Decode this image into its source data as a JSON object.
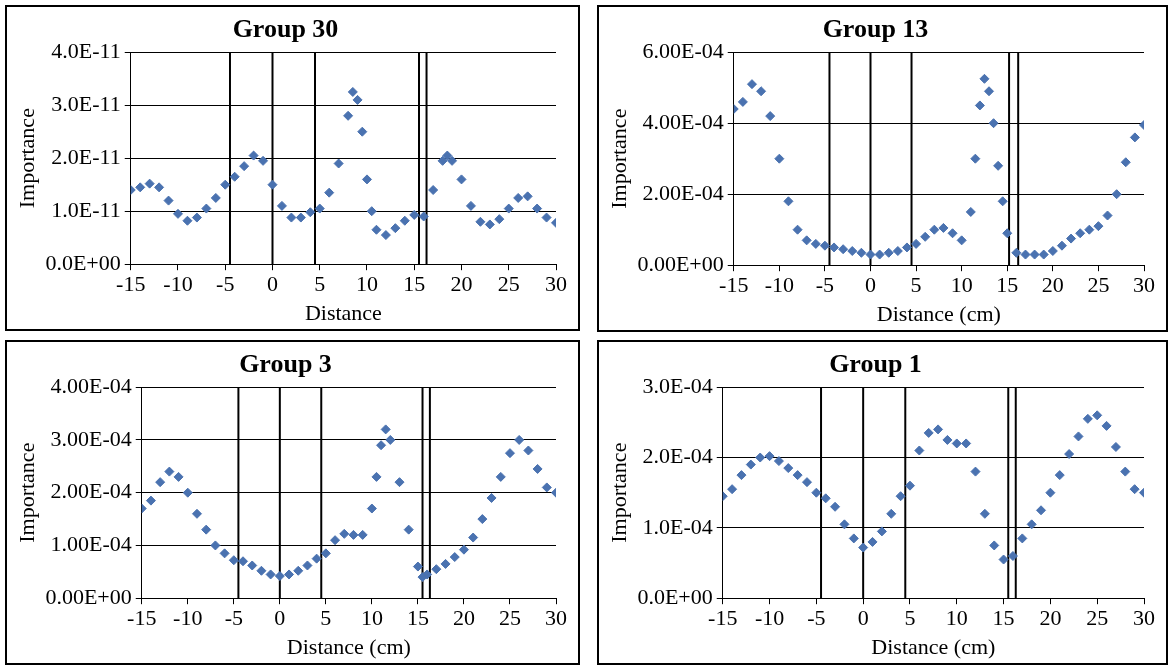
{
  "chart_data": [
    {
      "type": "scatter",
      "title": "Group 30",
      "xlabel": "Distance",
      "ylabel": "Importance",
      "color": "#4a72b0",
      "marker": "diamond",
      "grid": "y",
      "xlim": [
        -15,
        30
      ],
      "xticks": [
        -15,
        -10,
        -5,
        0,
        5,
        10,
        15,
        20,
        25,
        30
      ],
      "ylim": [
        0,
        4e-11
      ],
      "yticks": [
        {
          "value": 0,
          "label": "0.0E+00"
        },
        {
          "value": 1e-11,
          "label": "1.0E-11"
        },
        {
          "value": 2e-11,
          "label": "2.0E-11"
        },
        {
          "value": 3e-11,
          "label": "3.0E-11"
        },
        {
          "value": 4e-11,
          "label": "4.0E-11"
        }
      ],
      "ref_lines": [
        {
          "axis": "x",
          "value": -4.5,
          "color": "#000000"
        },
        {
          "axis": "x",
          "value": 0,
          "color": "#000000"
        },
        {
          "axis": "x",
          "value": 4.5,
          "color": "#000000"
        },
        {
          "axis": "x",
          "value": 15.5,
          "color": "#000000"
        },
        {
          "axis": "x",
          "value": 16.3,
          "color": "#000000"
        }
      ],
      "x": [
        -15,
        -14,
        -13,
        -12,
        -11,
        -10,
        -9,
        -8,
        -7,
        -6,
        -5,
        -4,
        -3,
        -2,
        -1,
        0,
        1,
        2,
        3,
        4,
        5,
        6,
        7,
        8,
        8.5,
        9,
        9.5,
        10,
        10.5,
        11,
        12,
        13,
        14,
        15,
        16,
        17,
        18,
        18.5,
        19,
        20,
        21,
        22,
        23,
        24,
        25,
        26,
        27,
        28,
        29,
        30
      ],
      "values": [
        1.4e-11,
        1.45e-11,
        1.52e-11,
        1.45e-11,
        1.2e-11,
        9.5e-12,
        8.2e-12,
        8.8e-12,
        1.05e-11,
        1.25e-11,
        1.5e-11,
        1.65e-11,
        1.85e-11,
        2.05e-11,
        1.95e-11,
        1.5e-11,
        1.1e-11,
        8.8e-12,
        8.8e-12,
        9.8e-12,
        1.05e-11,
        1.35e-11,
        1.9e-11,
        2.8e-11,
        3.25e-11,
        3.1e-11,
        2.5e-11,
        1.6e-11,
        1e-11,
        6.5e-12,
        5.5e-12,
        6.8e-12,
        8.2e-12,
        9.3e-12,
        9e-12,
        1.4e-11,
        1.95e-11,
        2.05e-11,
        1.95e-11,
        1.6e-11,
        1.1e-11,
        8e-12,
        7.5e-12,
        8.5e-12,
        1.05e-11,
        1.25e-11,
        1.28e-11,
        1.05e-11,
        8.8e-12,
        7.8e-12
      ]
    },
    {
      "type": "scatter",
      "title": "Group 13",
      "xlabel": "Distance (cm)",
      "ylabel": "Importance",
      "color": "#4a72b0",
      "marker": "diamond",
      "grid": "y",
      "xlim": [
        -15,
        30
      ],
      "xticks": [
        -15,
        -10,
        -5,
        0,
        5,
        10,
        15,
        20,
        25,
        30
      ],
      "ylim": [
        0,
        0.0006
      ],
      "yticks": [
        {
          "value": 0,
          "label": "0.00E+00"
        },
        {
          "value": 0.0002,
          "label": "2.00E-04"
        },
        {
          "value": 0.0004,
          "label": "4.00E-04"
        },
        {
          "value": 0.0006,
          "label": "6.00E-04"
        }
      ],
      "ref_lines": [
        {
          "axis": "x",
          "value": -4.5,
          "color": "#000000"
        },
        {
          "axis": "x",
          "value": 0,
          "color": "#000000"
        },
        {
          "axis": "x",
          "value": 4.5,
          "color": "#000000"
        },
        {
          "axis": "x",
          "value": 15.2,
          "color": "#000000"
        },
        {
          "axis": "x",
          "value": 16.2,
          "color": "#000000"
        }
      ],
      "x": [
        -15,
        -14,
        -13,
        -12,
        -11,
        -10,
        -9,
        -8,
        -7,
        -6,
        -5,
        -4,
        -3,
        -2,
        -1,
        0,
        1,
        2,
        3,
        4,
        5,
        6,
        7,
        8,
        9,
        10,
        11,
        11.5,
        12,
        12.5,
        13,
        13.5,
        14,
        14.5,
        15,
        16,
        17,
        18,
        19,
        20,
        21,
        22,
        23,
        24,
        25,
        26,
        27,
        28,
        29,
        30
      ],
      "values": [
        0.00044,
        0.00046,
        0.00051,
        0.00049,
        0.00042,
        0.0003,
        0.00018,
        0.0001,
        7e-05,
        6e-05,
        5.5e-05,
        5e-05,
        4.5e-05,
        4e-05,
        3.5e-05,
        3e-05,
        3e-05,
        3.5e-05,
        4e-05,
        5e-05,
        6e-05,
        8e-05,
        0.0001,
        0.000105,
        9e-05,
        7e-05,
        0.00015,
        0.0003,
        0.00045,
        0.000525,
        0.00049,
        0.0004,
        0.00028,
        0.00018,
        9e-05,
        3.5e-05,
        3e-05,
        3e-05,
        3e-05,
        4e-05,
        5.5e-05,
        7.5e-05,
        9e-05,
        0.0001,
        0.00011,
        0.00014,
        0.0002,
        0.00029,
        0.00036,
        0.000395
      ]
    },
    {
      "type": "scatter",
      "title": "Group 3",
      "xlabel": "Distance (cm)",
      "ylabel": "Importance",
      "color": "#4a72b0",
      "marker": "diamond",
      "grid": "y",
      "xlim": [
        -15,
        30
      ],
      "xticks": [
        -15,
        -10,
        -5,
        0,
        5,
        10,
        15,
        20,
        25,
        30
      ],
      "ylim": [
        0,
        0.0004
      ],
      "yticks": [
        {
          "value": 0,
          "label": "0.00E+00"
        },
        {
          "value": 0.0001,
          "label": "1.00E-04"
        },
        {
          "value": 0.0002,
          "label": "2.00E-04"
        },
        {
          "value": 0.0003,
          "label": "3.00E-04"
        },
        {
          "value": 0.0004,
          "label": "4.00E-04"
        }
      ],
      "ref_lines": [
        {
          "axis": "x",
          "value": -4.5,
          "color": "#000000"
        },
        {
          "axis": "x",
          "value": 0,
          "color": "#000000"
        },
        {
          "axis": "x",
          "value": 4.5,
          "color": "#000000"
        },
        {
          "axis": "x",
          "value": 15.5,
          "color": "#000000"
        },
        {
          "axis": "x",
          "value": 16.3,
          "color": "#000000"
        }
      ],
      "x": [
        -15,
        -14,
        -13,
        -12,
        -11,
        -10,
        -9,
        -8,
        -7,
        -6,
        -5,
        -4,
        -3,
        -2,
        -1,
        0,
        1,
        2,
        3,
        4,
        5,
        6,
        7,
        8,
        9,
        10,
        10.5,
        11,
        11.5,
        12,
        13,
        14,
        15,
        15.5,
        16,
        17,
        18,
        19,
        20,
        21,
        22,
        23,
        24,
        25,
        26,
        27,
        28,
        29,
        30
      ],
      "values": [
        0.00017,
        0.000185,
        0.00022,
        0.00024,
        0.00023,
        0.0002,
        0.00016,
        0.00013,
        0.0001,
        8.5e-05,
        7.2e-05,
        7e-05,
        6.2e-05,
        5.2e-05,
        4.5e-05,
        4.2e-05,
        4.5e-05,
        5.2e-05,
        6.2e-05,
        7.5e-05,
        8.5e-05,
        0.00011,
        0.000122,
        0.00012,
        0.00012,
        0.00017,
        0.00023,
        0.00029,
        0.00032,
        0.0003,
        0.00022,
        0.00013,
        6e-05,
        4e-05,
        4.5e-05,
        5.5e-05,
        6.5e-05,
        7.8e-05,
        9.2e-05,
        0.000115,
        0.00015,
        0.00019,
        0.00023,
        0.000275,
        0.0003,
        0.00028,
        0.000245,
        0.00021,
        0.0002
      ]
    },
    {
      "type": "scatter",
      "title": "Group 1",
      "xlabel": "Distance (cm)",
      "ylabel": "Importance",
      "color": "#4a72b0",
      "marker": "diamond",
      "grid": "y",
      "xlim": [
        -15,
        30
      ],
      "xticks": [
        -15,
        -10,
        -5,
        0,
        5,
        10,
        15,
        20,
        25,
        30
      ],
      "ylim": [
        0,
        0.0003
      ],
      "yticks": [
        {
          "value": 0,
          "label": "0.0E+00"
        },
        {
          "value": 0.0001,
          "label": "1.0E-04"
        },
        {
          "value": 0.0002,
          "label": "2.0E-04"
        },
        {
          "value": 0.0003,
          "label": "3.0E-04"
        }
      ],
      "ref_lines": [
        {
          "axis": "x",
          "value": -4.5,
          "color": "#000000"
        },
        {
          "axis": "x",
          "value": 0,
          "color": "#000000"
        },
        {
          "axis": "x",
          "value": 4.5,
          "color": "#000000"
        },
        {
          "axis": "x",
          "value": 15.5,
          "color": "#000000"
        },
        {
          "axis": "x",
          "value": 16.3,
          "color": "#000000"
        }
      ],
      "x": [
        -15,
        -14,
        -13,
        -12,
        -11,
        -10,
        -9,
        -8,
        -7,
        -6,
        -5,
        -4,
        -3,
        -2,
        -1,
        0,
        1,
        2,
        3,
        4,
        5,
        6,
        7,
        8,
        9,
        10,
        11,
        12,
        13,
        14,
        15,
        16,
        17,
        18,
        19,
        20,
        21,
        22,
        23,
        24,
        25,
        26,
        27,
        28,
        29,
        30
      ],
      "values": [
        0.000145,
        0.000155,
        0.000175,
        0.00019,
        0.0002,
        0.000202,
        0.000195,
        0.000185,
        0.000175,
        0.000165,
        0.00015,
        0.000142,
        0.00013,
        0.000105,
        8.5e-05,
        7.2e-05,
        8e-05,
        9.5e-05,
        0.00012,
        0.000145,
        0.00016,
        0.00021,
        0.000235,
        0.00024,
        0.000225,
        0.00022,
        0.00022,
        0.00018,
        0.00012,
        7.5e-05,
        5.5e-05,
        6e-05,
        8.5e-05,
        0.000105,
        0.000125,
        0.00015,
        0.000175,
        0.000205,
        0.00023,
        0.000255,
        0.00026,
        0.000245,
        0.000215,
        0.00018,
        0.000155,
        0.00015
      ]
    }
  ]
}
